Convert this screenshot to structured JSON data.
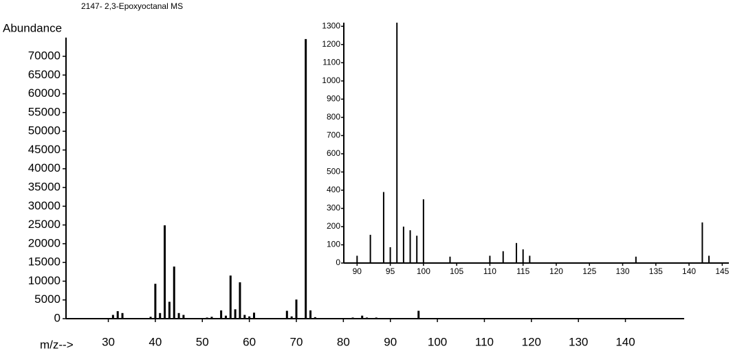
{
  "chart_data": [
    {
      "type": "bar",
      "title": "2147- 2,3-Epoxyoctanal MS",
      "ylabel": "Abundance",
      "xlabel": "m/z-->",
      "x": [
        31,
        32,
        33,
        39,
        40,
        41,
        42,
        43,
        44,
        45,
        46,
        51,
        52,
        54,
        55,
        56,
        57,
        58,
        59,
        60,
        61,
        68,
        69,
        70,
        72,
        73,
        74,
        82,
        84,
        85,
        87,
        96
      ],
      "values": [
        1000,
        2000,
        1500,
        500,
        9300,
        1500,
        24900,
        4500,
        13900,
        1500,
        1000,
        300,
        500,
        2200,
        800,
        11500,
        2500,
        9700,
        1000,
        600,
        1600,
        2100,
        600,
        5100,
        74600,
        2200,
        400,
        300,
        800,
        300,
        300,
        2100
      ],
      "color": "#000000",
      "xlim": [
        21,
        152.5
      ],
      "ylim": [
        0,
        75000
      ],
      "xticks": [
        30,
        40,
        50,
        60,
        70,
        80,
        90,
        100,
        110,
        120,
        130,
        140
      ],
      "yticks": [
        0,
        5000,
        10000,
        15000,
        20000,
        25000,
        30000,
        35000,
        40000,
        45000,
        50000,
        55000,
        60000,
        65000,
        70000
      ]
    },
    {
      "type": "bar",
      "x": [
        90,
        92,
        94,
        95,
        96,
        97,
        98,
        99,
        100,
        104,
        110,
        112,
        114,
        115,
        116,
        132,
        142,
        143
      ],
      "values": [
        40,
        155,
        390,
        87,
        1320,
        200,
        180,
        150,
        350,
        35,
        40,
        65,
        110,
        75,
        40,
        35,
        223,
        40
      ],
      "color": "#000000",
      "xlim": [
        88,
        146
      ],
      "ylim": [
        0,
        1320
      ],
      "xticks": [
        90,
        95,
        100,
        105,
        110,
        115,
        120,
        125,
        130,
        135,
        140,
        145
      ],
      "yticks": [
        0,
        100,
        200,
        300,
        400,
        500,
        600,
        700,
        800,
        900,
        1000,
        1100,
        1200,
        1300
      ]
    }
  ]
}
